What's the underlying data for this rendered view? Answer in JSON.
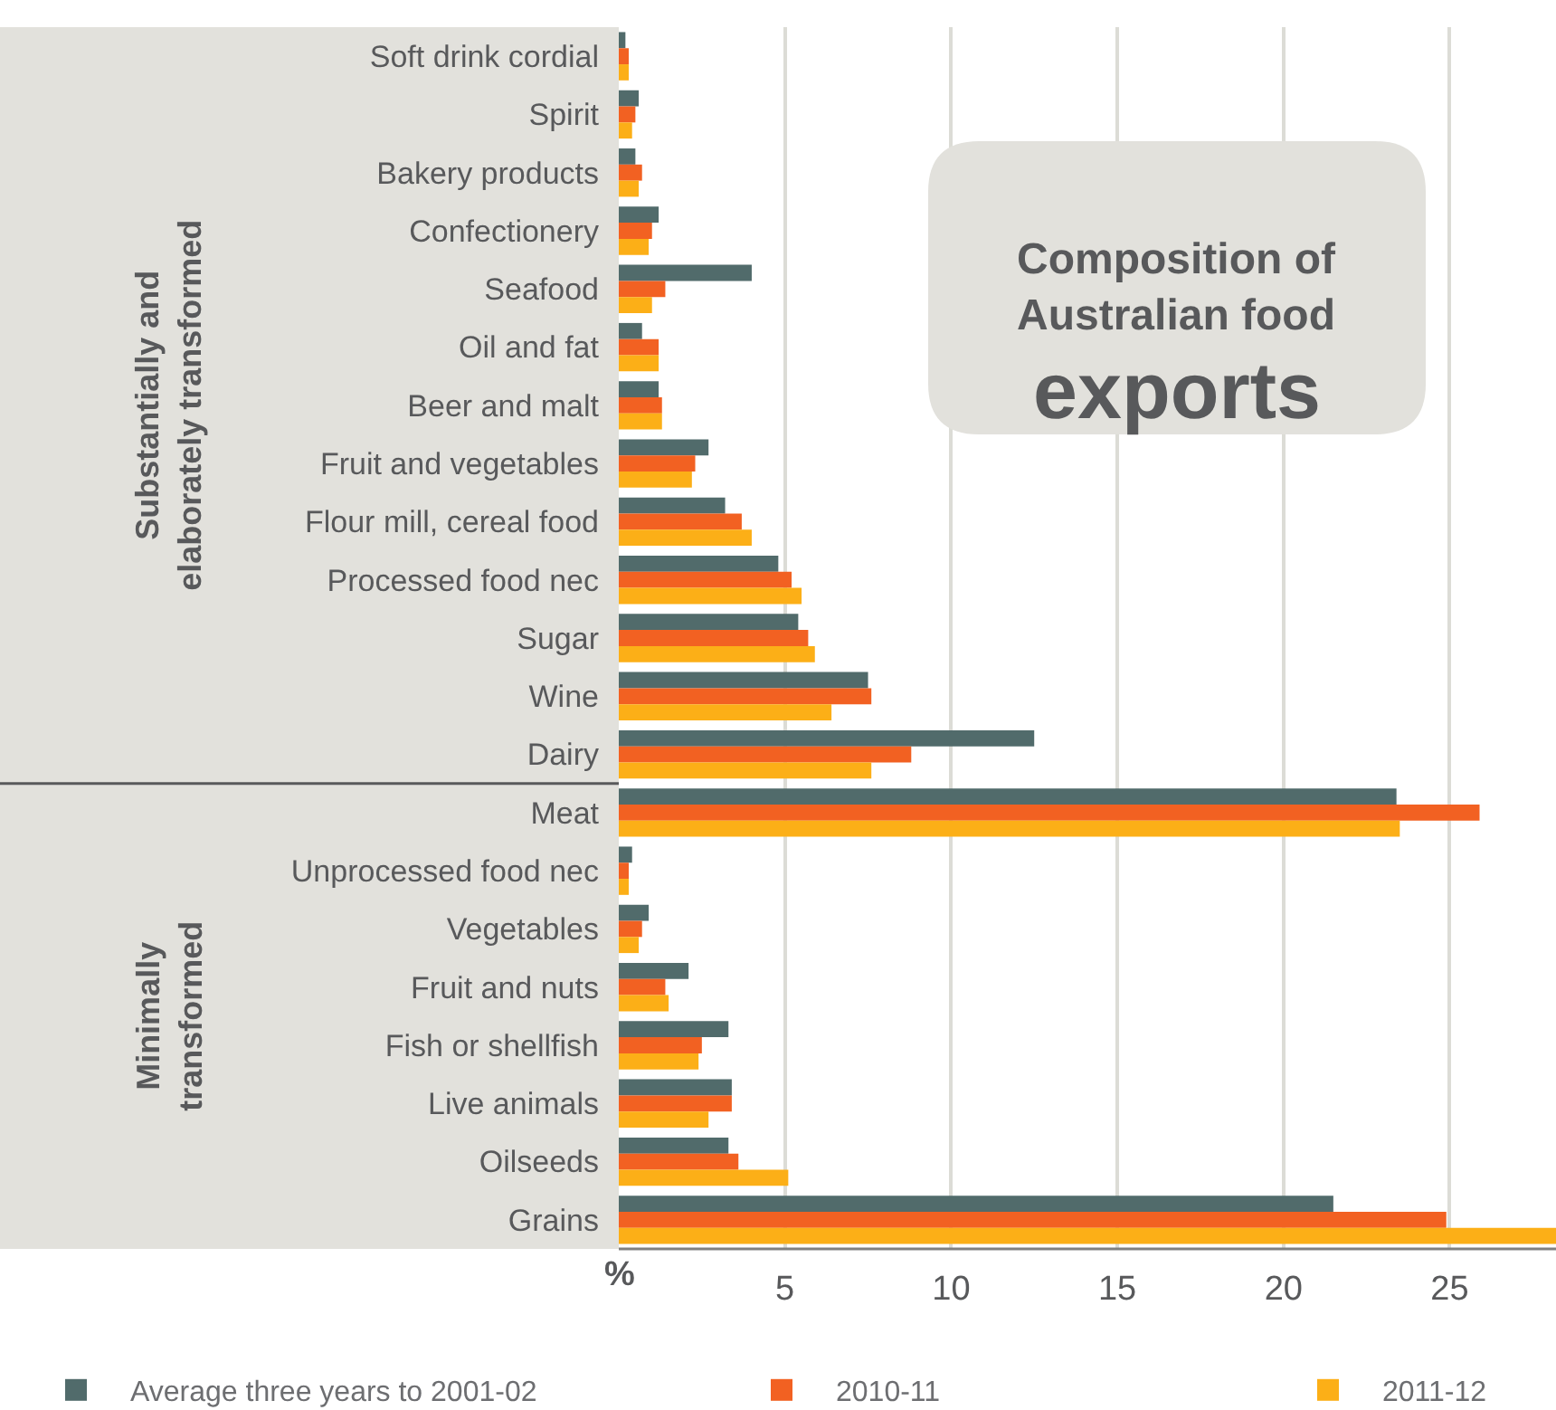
{
  "chart_data": {
    "type": "bar",
    "orientation": "horizontal",
    "title": "Composition of Australian food exports",
    "xlabel": "%",
    "categories": [
      "Soft drink cordial",
      "Spirit",
      "Bakery products",
      "Confectionery",
      "Seafood",
      "Oil and fat",
      "Beer and malt",
      "Fruit and vegetables",
      "Flour mill, cereal food",
      "Processed food nec",
      "Sugar",
      "Wine",
      "Dairy",
      "Meat",
      "Unprocessed food nec",
      "Vegetables",
      "Fruit and nuts",
      "Fish or shellfish",
      "Live animals",
      "Oilseeds",
      "Grains"
    ],
    "series": [
      {
        "name": "Average three years to 2001-02",
        "color": "#516b6b",
        "values": [
          0.2,
          0.6,
          0.5,
          1.2,
          4.0,
          0.7,
          1.2,
          2.7,
          3.2,
          4.8,
          5.4,
          7.5,
          12.5,
          23.4,
          0.4,
          0.9,
          2.1,
          3.3,
          3.4,
          3.3,
          21.5
        ]
      },
      {
        "name": "2010-11",
        "color": "#f26122",
        "values": [
          0.3,
          0.5,
          0.7,
          1.0,
          1.4,
          1.2,
          1.3,
          2.3,
          3.7,
          5.2,
          5.7,
          7.6,
          8.8,
          25.9,
          0.3,
          0.7,
          1.4,
          2.5,
          3.4,
          3.6,
          24.9
        ]
      },
      {
        "name": "2011-12",
        "color": "#fcaf17",
        "values": [
          0.3,
          0.4,
          0.6,
          0.9,
          1.0,
          1.2,
          1.3,
          2.2,
          4.0,
          5.5,
          5.9,
          6.4,
          7.6,
          23.5,
          0.3,
          0.6,
          1.5,
          2.4,
          2.7,
          5.1,
          28.2
        ]
      }
    ],
    "xlim": [
      0,
      28.2
    ],
    "xticks": [
      5,
      10,
      15,
      20,
      25
    ],
    "grid": "x",
    "legend": "bottom",
    "annotations": [
      "Substantially and elaborately transformed",
      "Minimally transformed"
    ]
  }
}
